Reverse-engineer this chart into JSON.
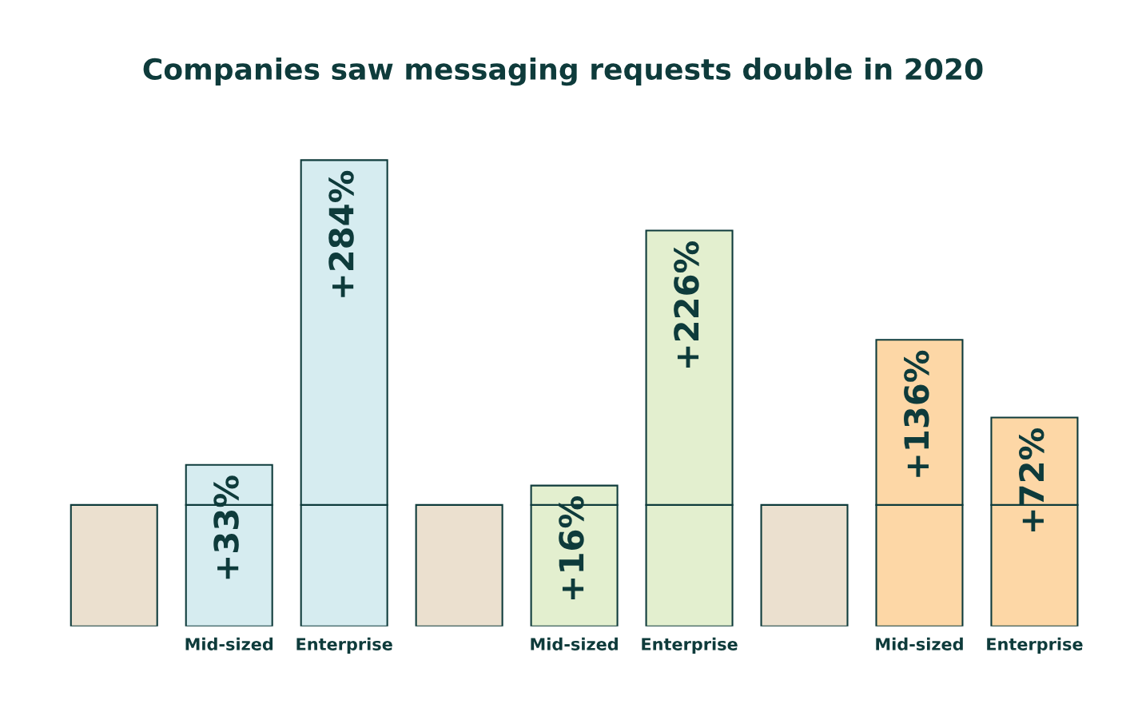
{
  "chart_data": {
    "type": "bar",
    "title": "Companies saw messaging requests double in 2020",
    "categories": [
      null,
      "Mid-sized",
      "Enterprise",
      null,
      "Mid-sized",
      "Enterprise",
      null,
      "Mid-sized",
      "Enterprise"
    ],
    "stacked": true,
    "series": [
      {
        "colors": [
          "#ebe0cf",
          "#d6ecf0",
          "#d6ecf0",
          "#ebe0cf",
          "#e3efcf",
          "#e3efcf",
          "#ebe0cf",
          "#fdd7a6",
          "#fdd7a6"
        ],
        "values": [
          100,
          100,
          100,
          100,
          100,
          100,
          100,
          100,
          100
        ]
      },
      {
        "colors": [
          "#ebe0cf",
          "#d6ecf0",
          "#d6ecf0",
          "#ebe0cf",
          "#e3efcf",
          "#e3efcf",
          "#ebe0cf",
          "#fdd7a6",
          "#fdd7a6"
        ],
        "values": [
          null,
          33,
          284,
          null,
          16,
          226,
          null,
          136,
          72
        ],
        "value_labels": [
          null,
          "+33%",
          "+284%",
          null,
          "+16%",
          "+226%",
          null,
          "+136%",
          "+72%"
        ]
      }
    ],
    "tick_labels": "x",
    "grid": false,
    "legend": false
  }
}
